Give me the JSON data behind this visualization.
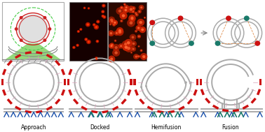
{
  "bg_color": "#ffffff",
  "labels": [
    "Approach",
    "Docked",
    "Hemifusion",
    "Fusion"
  ],
  "label_fontsize": 5.5,
  "vesicle_color": "#aaaaaa",
  "vesicle_lw": 1.4,
  "red_color": "#cc1111",
  "teal_color": "#1a7a6a",
  "blue_color": "#1a50aa",
  "teal2_color": "#1a8060",
  "gray_color": "#888888",
  "pink_color": "#d8a0b8",
  "orange_dashed": "#e09050"
}
